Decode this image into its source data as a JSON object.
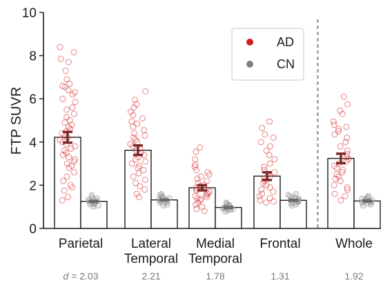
{
  "chart_data": {
    "type": "bar",
    "ylabel": "FTP SUVR",
    "xlabel": "",
    "ylim": [
      0,
      10
    ],
    "yticks": [
      0,
      2,
      4,
      6,
      8,
      10
    ],
    "categories": [
      "Parietal",
      "Lateral\nTemporal",
      "Medial\nTemporal",
      "Frontal",
      "Whole"
    ],
    "effect_size_prefix": "d",
    "effect_sizes": [
      "2.03",
      "2.21",
      "1.78",
      "1.31",
      "1.92"
    ],
    "separator_before_category": "Whole",
    "legend": {
      "position": "top-right",
      "entries": [
        "AD",
        "CN"
      ]
    },
    "colors": {
      "AD": "#d7191c",
      "CN": "#808080",
      "AD_error": "#7b2a2a",
      "CN_error": "#666666"
    },
    "series": [
      {
        "name": "AD",
        "values": [
          4.22,
          3.62,
          1.88,
          2.42,
          3.24
        ],
        "error": [
          0.25,
          0.22,
          0.12,
          0.18,
          0.22
        ],
        "points": [
          [
            8.4,
            8.15,
            7.85,
            7.7,
            7.3,
            6.9,
            6.7,
            6.6,
            6.55,
            6.4,
            6.3,
            6.2,
            6.0,
            5.85,
            5.6,
            5.5,
            5.3,
            5.15,
            5.0,
            4.9,
            4.8,
            4.7,
            4.6,
            4.5,
            4.4,
            4.3,
            4.2,
            4.1,
            4.0,
            3.9,
            3.8,
            3.7,
            3.6,
            3.5,
            3.4,
            3.3,
            3.2,
            3.1,
            3.0,
            2.9,
            2.8,
            2.6,
            2.4,
            2.2,
            2.0,
            1.9,
            1.75,
            1.45,
            1.3
          ],
          [
            6.35,
            5.95,
            5.75,
            5.6,
            5.4,
            5.25,
            5.1,
            4.95,
            4.85,
            4.7,
            4.55,
            4.4,
            4.3,
            4.2,
            4.1,
            4.0,
            3.9,
            3.8,
            3.7,
            3.6,
            3.5,
            3.4,
            3.3,
            3.2,
            3.1,
            3.0,
            2.9,
            2.8,
            2.7,
            2.55,
            2.4,
            2.25,
            2.1,
            1.95,
            1.8,
            1.6,
            1.45
          ],
          [
            3.75,
            3.55,
            3.2,
            2.95,
            2.85,
            2.7,
            2.6,
            2.5,
            2.4,
            2.3,
            2.2,
            2.1,
            2.0,
            1.95,
            1.9,
            1.85,
            1.8,
            1.75,
            1.7,
            1.65,
            1.6,
            1.55,
            1.5,
            1.45,
            1.4,
            1.35,
            1.3,
            1.2,
            1.1,
            1.0,
            0.9,
            0.8
          ],
          [
            4.95,
            4.65,
            4.35,
            4.2,
            4.0,
            3.8,
            3.6,
            3.4,
            3.2,
            3.0,
            2.85,
            2.7,
            2.6,
            2.5,
            2.4,
            2.3,
            2.2,
            2.1,
            2.0,
            1.9,
            1.8,
            1.7,
            1.6,
            1.5,
            1.4,
            1.3,
            1.25,
            1.2
          ],
          [
            6.1,
            5.75,
            5.45,
            5.3,
            4.95,
            4.8,
            4.7,
            4.6,
            4.5,
            4.35,
            4.2,
            4.0,
            3.8,
            3.6,
            3.45,
            3.3,
            3.2,
            3.1,
            3.0,
            2.9,
            2.8,
            2.7,
            2.6,
            2.5,
            2.4,
            2.3,
            2.2,
            2.0,
            1.9,
            1.8,
            1.6,
            1.5,
            1.3
          ]
        ]
      },
      {
        "name": "CN",
        "values": [
          1.25,
          1.32,
          0.97,
          1.3,
          1.27
        ],
        "error": [
          0.04,
          0.04,
          0.04,
          0.04,
          0.04
        ],
        "points": [
          [
            1.55,
            1.45,
            1.4,
            1.35,
            1.32,
            1.3,
            1.28,
            1.26,
            1.25,
            1.24,
            1.22,
            1.2,
            1.18,
            1.15,
            1.12,
            1.1,
            1.05,
            1.0
          ],
          [
            1.6,
            1.55,
            1.5,
            1.45,
            1.42,
            1.4,
            1.38,
            1.35,
            1.32,
            1.3,
            1.28,
            1.25,
            1.22,
            1.2,
            1.15,
            1.1,
            1.05
          ],
          [
            1.2,
            1.15,
            1.1,
            1.07,
            1.05,
            1.02,
            1.0,
            0.98,
            0.96,
            0.94,
            0.92,
            0.9,
            0.88,
            0.85,
            0.82,
            0.78
          ],
          [
            1.6,
            1.55,
            1.5,
            1.45,
            1.4,
            1.38,
            1.35,
            1.32,
            1.3,
            1.28,
            1.25,
            1.22,
            1.2,
            1.18,
            1.15,
            1.1,
            1.05
          ],
          [
            1.5,
            1.45,
            1.4,
            1.38,
            1.35,
            1.32,
            1.3,
            1.28,
            1.26,
            1.24,
            1.22,
            1.2,
            1.18,
            1.15,
            1.1,
            1.05
          ]
        ]
      }
    ]
  }
}
